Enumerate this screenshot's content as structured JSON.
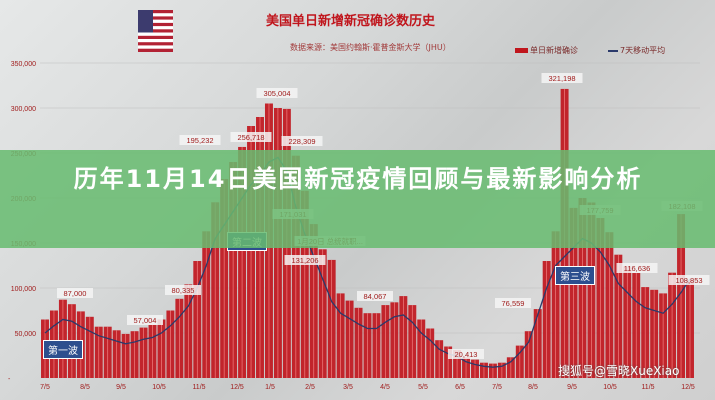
{
  "headline": "历年11月14日美国新冠疫情回顾与最新影响分析",
  "watermark": "搜狐号@雪晓XueXiao",
  "chart_data": {
    "type": "bar",
    "title": "美国单日新增新冠确诊数历史",
    "subtitle": "数据来源：美国约翰斯·霍普金斯大学（JHU）",
    "legend": [
      "单日新增确诊",
      "7天移动平均"
    ],
    "legend_placement": "top-right",
    "colors": {
      "bars": "#c0161d",
      "line": "#2b3a6b",
      "wave_label": "#2d4f8e"
    },
    "ylim": [
      0,
      350000
    ],
    "y_ticks": [
      "-",
      "50,000",
      "100,000",
      "150,000",
      "200,000",
      "250,000",
      "300,000",
      "350,000"
    ],
    "x_ticks": [
      "7/5",
      "8/5",
      "9/5",
      "10/5",
      "11/5",
      "12/5",
      "1/5",
      "2/5",
      "3/5",
      "4/5",
      "5/5",
      "6/5",
      "7/5",
      "8/5",
      "9/5",
      "10/5",
      "11/5",
      "12/5"
    ],
    "grid": true,
    "series": [
      {
        "name": "单日新增确诊",
        "type": "bar",
        "values": [
          65000,
          75000,
          87000,
          82000,
          74000,
          68000,
          57000,
          57004,
          53000,
          49000,
          52000,
          56000,
          59000,
          65000,
          75000,
          88000,
          104000,
          130000,
          163000,
          195232,
          221000,
          240000,
          256718,
          280000,
          290000,
          305004,
          300000,
          299000,
          247000,
          208000,
          171031,
          143000,
          131206,
          94000,
          86000,
          78000,
          72000,
          72000,
          81000,
          84067,
          91000,
          81000,
          65000,
          55000,
          42000,
          35000,
          31000,
          23000,
          20413,
          17000,
          16000,
          17000,
          23000,
          36000,
          52000,
          76559,
          130000,
          163000,
          321198,
          189000,
          200000,
          195000,
          177759,
          162000,
          137000,
          124000,
          116636,
          101000,
          98000,
          94000,
          117000,
          182108,
          108853
        ]
      },
      {
        "name": "7天移动平均",
        "type": "line",
        "values": [
          50000,
          58000,
          65000,
          63000,
          57000,
          52000,
          47000,
          44000,
          41000,
          38000,
          40000,
          43000,
          45000,
          50000,
          58000,
          68000,
          80000,
          100000,
          125000,
          155000,
          170000,
          185000,
          200000,
          215000,
          225000,
          240000,
          245000,
          230000,
          190000,
          160000,
          135000,
          110000,
          85000,
          72000,
          66000,
          60000,
          55000,
          55000,
          62000,
          68000,
          70000,
          62000,
          50000,
          42000,
          32000,
          27000,
          24000,
          18000,
          15000,
          13000,
          12000,
          13000,
          18000,
          28000,
          40000,
          70000,
          100000,
          125000,
          135000,
          145000,
          155000,
          150000,
          140000,
          125000,
          105000,
          95000,
          85000,
          78000,
          75000,
          72000,
          82000,
          95000,
          110000
        ]
      }
    ],
    "annotations": [
      "87,000",
      "57,004",
      "80,335",
      "195,232",
      "256,718",
      "305,004",
      "228,309",
      "171,031",
      "131,206",
      "84,067",
      "20,413",
      "76,559",
      "321,198",
      "177,759",
      "116,636",
      "182,108",
      "108,853",
      "1月20日 总统就职..."
    ],
    "wave_labels": [
      "第一波",
      "第二波",
      "第三波"
    ]
  }
}
